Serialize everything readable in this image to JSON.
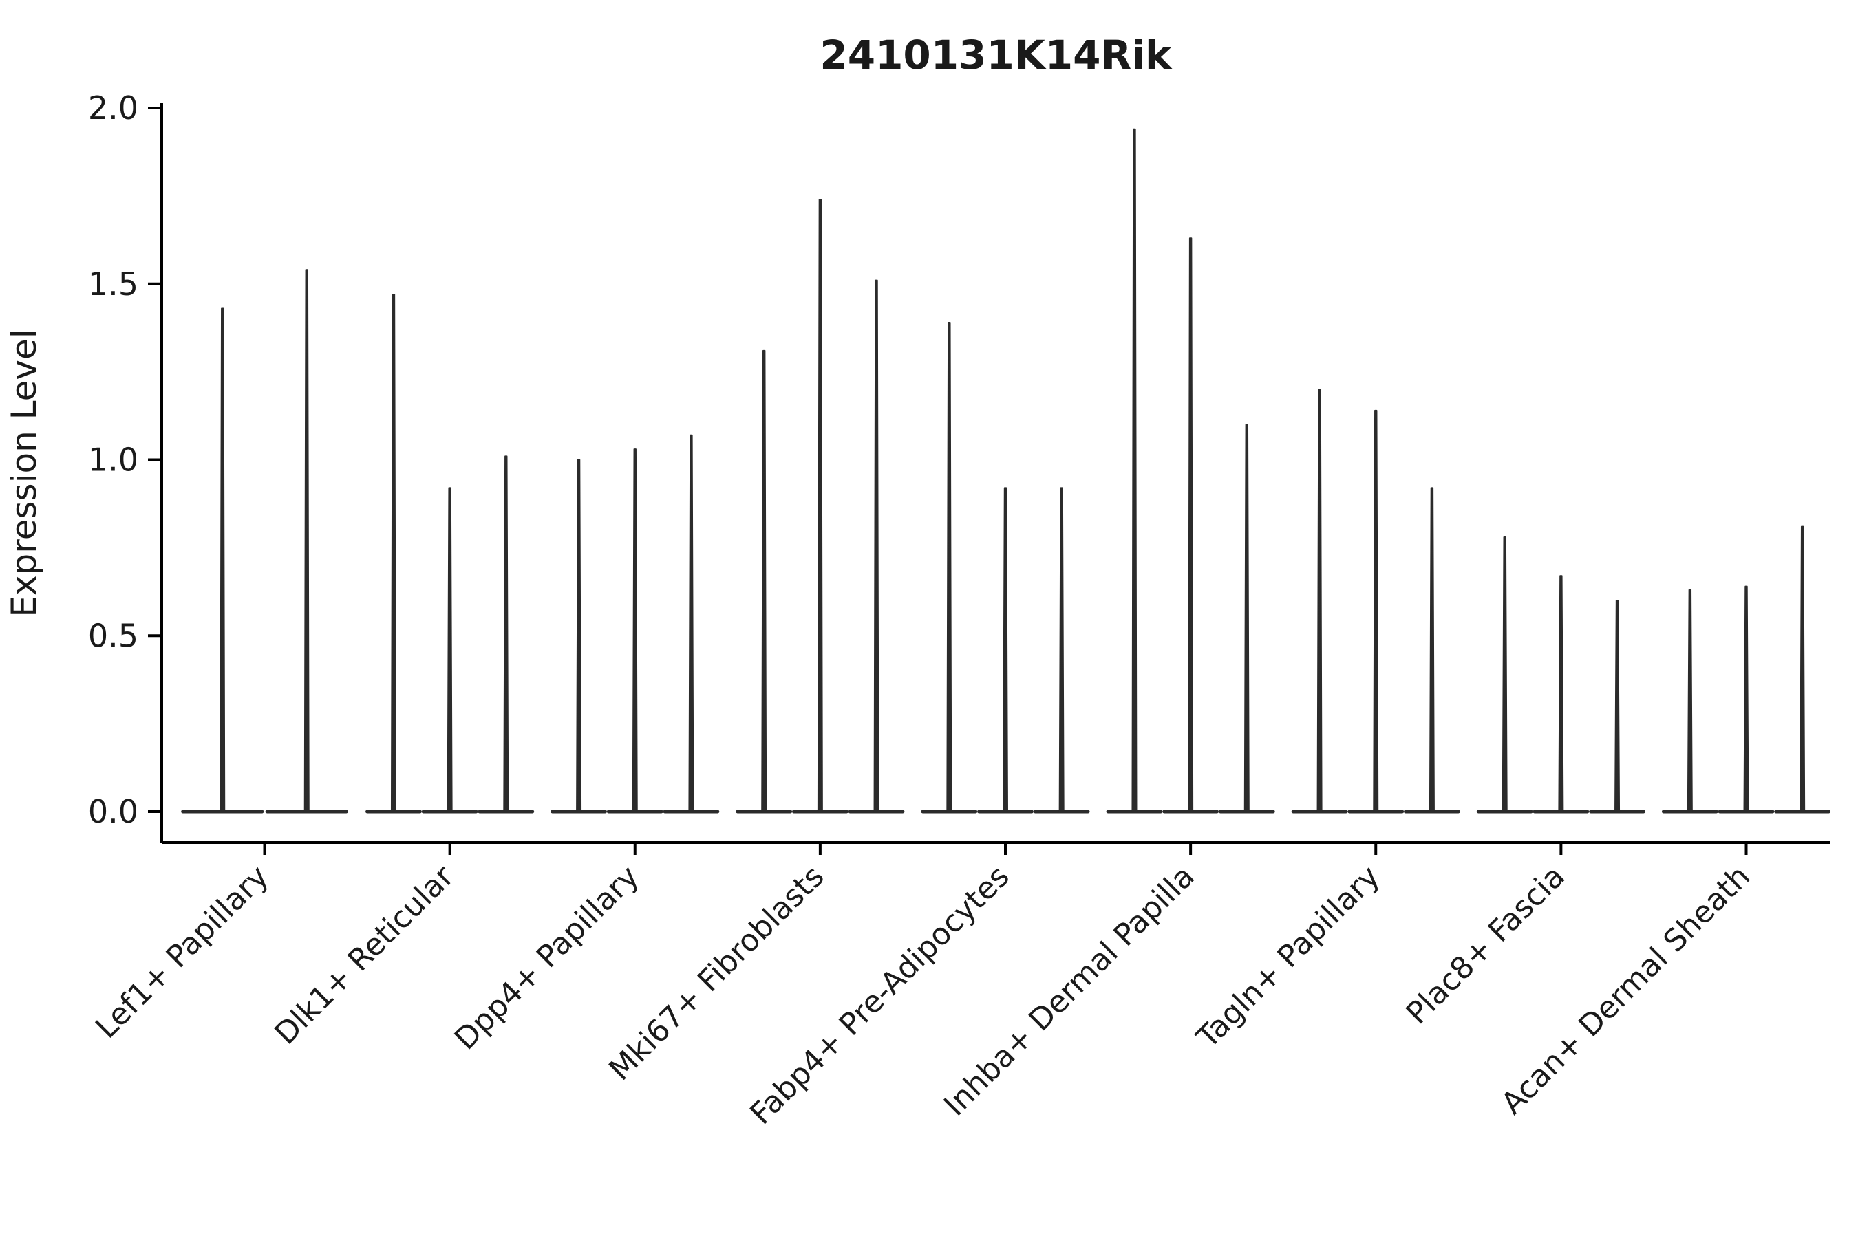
{
  "chart_data": {
    "type": "violin",
    "title": "2410131K14Rik",
    "ylabel": "Expression Level",
    "xlabel": "",
    "ylim": [
      0.0,
      2.0
    ],
    "yticks": [
      0.0,
      0.5,
      1.0,
      1.5,
      2.0
    ],
    "ytick_labels": [
      "0.0",
      "0.5",
      "1.0",
      "1.5",
      "2.0"
    ],
    "grid": false,
    "legend": "none",
    "description": "Narrow needle-like violin plots of gene expression per fibroblast subpopulation; each category contains multiple thin violins whose mass is concentrated at 0 with a spike up to the listed maximum expression value.",
    "categories": [
      {
        "label": "Lef1+ Papillary",
        "violin_maxima": [
          1.43,
          1.54
        ]
      },
      {
        "label": "Dlk1+ Reticular",
        "violin_maxima": [
          1.47,
          0.92,
          1.01
        ]
      },
      {
        "label": "Dpp4+ Papillary",
        "violin_maxima": [
          1.0,
          1.03,
          1.07
        ]
      },
      {
        "label": "Mki67+ Fibroblasts",
        "violin_maxima": [
          1.31,
          1.74,
          1.51
        ]
      },
      {
        "label": "Fabp4+ Pre-Adipocytes",
        "violin_maxima": [
          1.39,
          0.92,
          0.92
        ]
      },
      {
        "label": "Inhba+ Dermal Papilla",
        "violin_maxima": [
          1.94,
          1.63,
          1.1
        ]
      },
      {
        "label": "Tagln+ Papillary",
        "violin_maxima": [
          1.2,
          1.14,
          0.92
        ]
      },
      {
        "label": "Plac8+ Fascia",
        "violin_maxima": [
          0.78,
          0.67,
          0.6
        ]
      },
      {
        "label": "Acan+ Dermal Sheath",
        "violin_maxima": [
          0.63,
          0.64,
          0.81
        ]
      }
    ],
    "colors": {
      "violin": "#2b2b2b",
      "axis": "#000000",
      "text": "#1a1a1a",
      "background": "#ffffff"
    }
  }
}
